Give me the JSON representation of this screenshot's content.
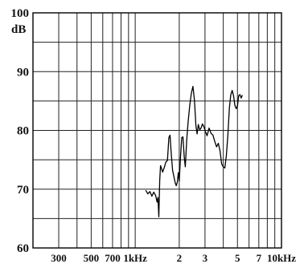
{
  "chart_data": {
    "type": "line",
    "title": "",
    "ylabel": "dB",
    "xlabel": "",
    "x_scale": "log",
    "x_unit": "Hz",
    "xlim": [
      200,
      10000
    ],
    "ylim": [
      60,
      100
    ],
    "grid": true,
    "y_ticks": [
      {
        "value": 100,
        "label": "100"
      },
      {
        "value": 90,
        "label": "90"
      },
      {
        "value": 80,
        "label": "80"
      },
      {
        "value": 70,
        "label": "70"
      },
      {
        "value": 60,
        "label": "60"
      }
    ],
    "y_gridlines": [
      60,
      65,
      70,
      75,
      80,
      85,
      90,
      95,
      100
    ],
    "x_gridlines": [
      200,
      300,
      400,
      500,
      600,
      700,
      800,
      900,
      1000,
      2000,
      3000,
      4000,
      5000,
      6000,
      7000,
      8000,
      9000,
      10000
    ],
    "x_ticks": [
      {
        "value": 300,
        "label": "300"
      },
      {
        "value": 500,
        "label": "500"
      },
      {
        "value": 700,
        "label": "700"
      },
      {
        "value": 1000,
        "label": "1kHz"
      },
      {
        "value": 2000,
        "label": "2"
      },
      {
        "value": 3000,
        "label": "3"
      },
      {
        "value": 5000,
        "label": "5"
      },
      {
        "value": 7000,
        "label": "7"
      },
      {
        "value": 10000,
        "label": "10kHz"
      }
    ],
    "series": [
      {
        "color": "#000000",
        "x": [
          1180,
          1220,
          1260,
          1300,
          1340,
          1380,
          1410,
          1430,
          1450,
          1470,
          1490,
          1510,
          1540,
          1580,
          1620,
          1660,
          1700,
          1730,
          1760,
          1800,
          1840,
          1880,
          1910,
          1940,
          1970,
          2000,
          2040,
          2080,
          2120,
          2160,
          2200,
          2250,
          2300,
          2360,
          2420,
          2480,
          2540,
          2600,
          2650,
          2700,
          2760,
          2820,
          2880,
          2950,
          3020,
          3100,
          3200,
          3300,
          3400,
          3500,
          3600,
          3700,
          3800,
          3900,
          4000,
          4100,
          4200,
          4300,
          4400,
          4500,
          4600,
          4700,
          4800,
          4900,
          5000,
          5100,
          5200,
          5300,
          5400
        ],
        "y": [
          69.8,
          69.2,
          69.6,
          68.8,
          69.5,
          68.9,
          67.8,
          68.6,
          65.3,
          71.5,
          74.0,
          73.6,
          72.9,
          73.7,
          74.6,
          74.9,
          78.8,
          79.2,
          76.3,
          73.2,
          72.1,
          71.0,
          70.6,
          71.2,
          72.8,
          71.4,
          75.4,
          78.8,
          78.9,
          75.6,
          73.8,
          78.4,
          81.4,
          84.2,
          86.3,
          87.5,
          85.1,
          80.8,
          79.4,
          81.0,
          80.1,
          80.4,
          81.1,
          80.6,
          79.8,
          79.1,
          80.4,
          79.5,
          79.2,
          78.1,
          77.2,
          77.8,
          76.5,
          74.3,
          73.8,
          73.6,
          75.8,
          79.1,
          83.8,
          86.0,
          86.8,
          85.9,
          84.3,
          83.7,
          84.2,
          85.9,
          86.1,
          85.5,
          86.0
        ]
      }
    ]
  }
}
